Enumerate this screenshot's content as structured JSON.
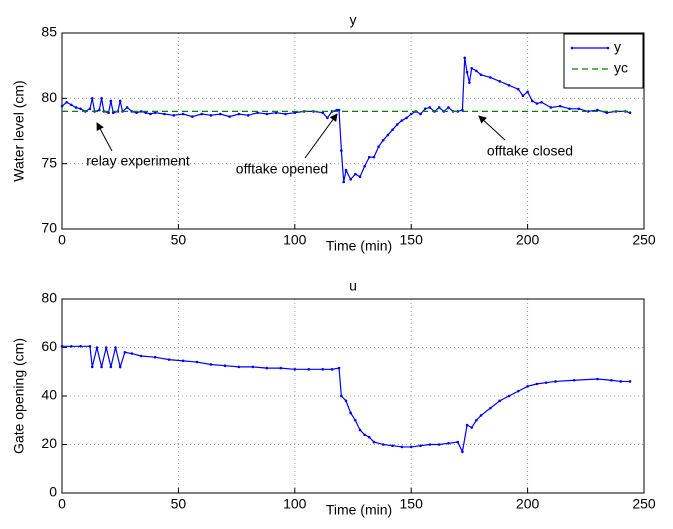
{
  "chart_data": [
    {
      "type": "line",
      "title": "y",
      "xlabel": "Time (min)",
      "ylabel": "Water level (cm)",
      "xlim": [
        0,
        250
      ],
      "xticks": [
        0,
        50,
        100,
        150,
        200,
        250
      ],
      "ylim": [
        70,
        85
      ],
      "yticks": [
        70,
        75,
        80,
        85
      ],
      "grid": true,
      "legend": "upper right",
      "annotations": [
        "relay experiment",
        "offtake opened",
        "offtake closed"
      ],
      "series": [
        {
          "name": "y",
          "color": "#0000ff",
          "style": "solid-dots",
          "x": [
            0,
            2,
            4,
            6,
            8,
            10,
            12,
            13,
            14,
            16,
            17,
            18,
            20,
            21,
            22,
            24,
            25,
            26,
            28,
            30,
            32,
            34,
            36,
            38,
            40,
            44,
            48,
            52,
            56,
            60,
            64,
            68,
            72,
            76,
            80,
            84,
            88,
            92,
            96,
            100,
            104,
            108,
            112,
            114,
            116,
            118,
            119,
            120,
            121,
            122,
            124,
            126,
            128,
            130,
            132,
            134,
            136,
            138,
            140,
            142,
            144,
            146,
            148,
            150,
            152,
            154,
            156,
            158,
            160,
            162,
            164,
            166,
            168,
            170,
            172,
            173,
            174,
            175,
            176,
            178,
            180,
            184,
            188,
            192,
            196,
            198,
            200,
            202,
            204,
            206,
            210,
            214,
            218,
            222,
            226,
            230,
            234,
            238,
            242,
            244
          ],
          "values": [
            79.4,
            79.7,
            79.5,
            79.3,
            79.2,
            79.0,
            79.2,
            80.0,
            79.0,
            79.1,
            80.0,
            79.0,
            78.9,
            79.8,
            78.9,
            79.0,
            79.8,
            79.0,
            79.3,
            79.0,
            78.9,
            79.0,
            78.9,
            78.8,
            78.9,
            78.8,
            78.7,
            78.8,
            78.6,
            78.8,
            78.7,
            78.8,
            78.6,
            78.8,
            78.7,
            78.9,
            78.8,
            78.9,
            78.8,
            78.9,
            79.0,
            79.0,
            78.9,
            78.5,
            79.0,
            79.1,
            79.1,
            76.0,
            73.6,
            74.5,
            73.8,
            74.2,
            74.0,
            74.8,
            75.5,
            75.5,
            76.3,
            76.8,
            77.2,
            77.6,
            78.0,
            78.3,
            78.5,
            78.8,
            79.0,
            78.8,
            79.2,
            79.3,
            79.0,
            79.3,
            79.0,
            79.3,
            79.0,
            79.0,
            79.1,
            83.1,
            82.0,
            81.2,
            82.3,
            82.1,
            81.8,
            81.6,
            81.3,
            81.0,
            80.7,
            80.2,
            80.5,
            79.8,
            79.6,
            79.7,
            79.3,
            79.4,
            79.2,
            79.2,
            79.0,
            79.1,
            78.9,
            79.0,
            79.0,
            78.9
          ]
        },
        {
          "name": "yc",
          "color": "#008000",
          "style": "dashed",
          "x": [
            0,
            244
          ],
          "values": [
            79,
            79
          ]
        }
      ]
    },
    {
      "type": "line",
      "title": "u",
      "xlabel": "Time (min)",
      "ylabel": "Gate opening (cm)",
      "xlim": [
        0,
        250
      ],
      "xticks": [
        0,
        50,
        100,
        150,
        200,
        250
      ],
      "ylim": [
        0,
        80
      ],
      "yticks": [
        0,
        20,
        40,
        60,
        80
      ],
      "grid": true,
      "series": [
        {
          "color": "#0000ff",
          "style": "solid-dots",
          "x": [
            0,
            4,
            8,
            12,
            13,
            15,
            17,
            19,
            21,
            23,
            25,
            27,
            30,
            34,
            40,
            46,
            52,
            58,
            64,
            70,
            76,
            82,
            88,
            94,
            100,
            106,
            112,
            116,
            119,
            120,
            122,
            124,
            126,
            128,
            130,
            132,
            134,
            138,
            142,
            146,
            150,
            154,
            158,
            162,
            166,
            170,
            172,
            174,
            176,
            178,
            180,
            184,
            188,
            192,
            196,
            200,
            204,
            208,
            212,
            220,
            230,
            236,
            240,
            244
          ],
          "values": [
            60.5,
            60.5,
            60.5,
            60.5,
            52,
            60,
            52,
            60,
            52,
            60,
            52,
            58,
            57.5,
            56.5,
            56,
            55,
            54.5,
            54,
            53,
            52.5,
            52,
            52,
            51.5,
            51.5,
            51,
            51,
            51,
            51,
            51.5,
            40,
            38,
            33,
            30,
            26,
            24,
            23,
            21,
            20,
            19.5,
            19,
            19,
            19.5,
            20,
            20,
            20.5,
            21,
            17,
            28,
            27,
            30,
            32,
            35,
            38,
            40,
            42,
            44,
            45,
            45.5,
            46,
            46.5,
            47,
            46.5,
            46,
            46
          ]
        }
      ]
    }
  ]
}
